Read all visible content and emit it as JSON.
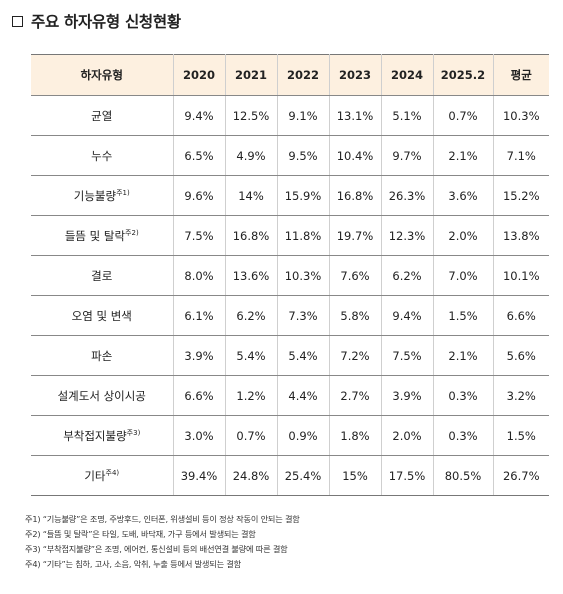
{
  "title": "주요 하자유형 신청현황",
  "table": {
    "header": [
      "하자유형",
      "2020",
      "2021",
      "2022",
      "2023",
      "2024",
      "2025.2",
      "평균"
    ],
    "rows": [
      {
        "type": "균열",
        "note": "",
        "values": [
          "9.4%",
          "12.5%",
          "9.1%",
          "13.1%",
          "5.1%",
          "0.7%",
          "10.3%"
        ]
      },
      {
        "type": "누수",
        "note": "",
        "values": [
          "6.5%",
          "4.9%",
          "9.5%",
          "10.4%",
          "9.7%",
          "2.1%",
          "7.1%"
        ]
      },
      {
        "type": "기능불량",
        "note": "주1)",
        "values": [
          "9.6%",
          "14%",
          "15.9%",
          "16.8%",
          "26.3%",
          "3.6%",
          "15.2%"
        ]
      },
      {
        "type": "들뜸 및 탈락",
        "note": "주2)",
        "values": [
          "7.5%",
          "16.8%",
          "11.8%",
          "19.7%",
          "12.3%",
          "2.0%",
          "13.8%"
        ]
      },
      {
        "type": "결로",
        "note": "",
        "values": [
          "8.0%",
          "13.6%",
          "10.3%",
          "7.6%",
          "6.2%",
          "7.0%",
          "10.1%"
        ]
      },
      {
        "type": "오염 및 변색",
        "note": "",
        "values": [
          "6.1%",
          "6.2%",
          "7.3%",
          "5.8%",
          "9.4%",
          "1.5%",
          "6.6%"
        ]
      },
      {
        "type": "파손",
        "note": "",
        "values": [
          "3.9%",
          "5.4%",
          "5.4%",
          "7.2%",
          "7.5%",
          "2.1%",
          "5.6%"
        ]
      },
      {
        "type": "설계도서 상이시공",
        "note": "",
        "values": [
          "6.6%",
          "1.2%",
          "4.4%",
          "2.7%",
          "3.9%",
          "0.3%",
          "3.2%"
        ]
      },
      {
        "type": "부착접지불량",
        "note": "주3)",
        "values": [
          "3.0%",
          "0.7%",
          "0.9%",
          "1.8%",
          "2.0%",
          "0.3%",
          "1.5%"
        ]
      },
      {
        "type": "기타",
        "note": "주4)",
        "values": [
          "39.4%",
          "24.8%",
          "25.4%",
          "15%",
          "17.5%",
          "80.5%",
          "26.7%"
        ]
      }
    ]
  },
  "notes": [
    "주1) “기능불량”은 조명, 주방후드, 인터폰, 위생설비 등이 정상 작동이 안되는 결함",
    "주2) “들뜸 및 탈락”은 타일, 도배, 바닥재, 가구 등에서 발생되는 결함",
    "주3) “부착접지불량”은 조명, 에어컨, 통신설비 등의 배선연결 불량에 따른 결함",
    "주4) “기타”는 침하, 고사, 소음, 악취, 누출 등에서 발생되는 결함"
  ]
}
